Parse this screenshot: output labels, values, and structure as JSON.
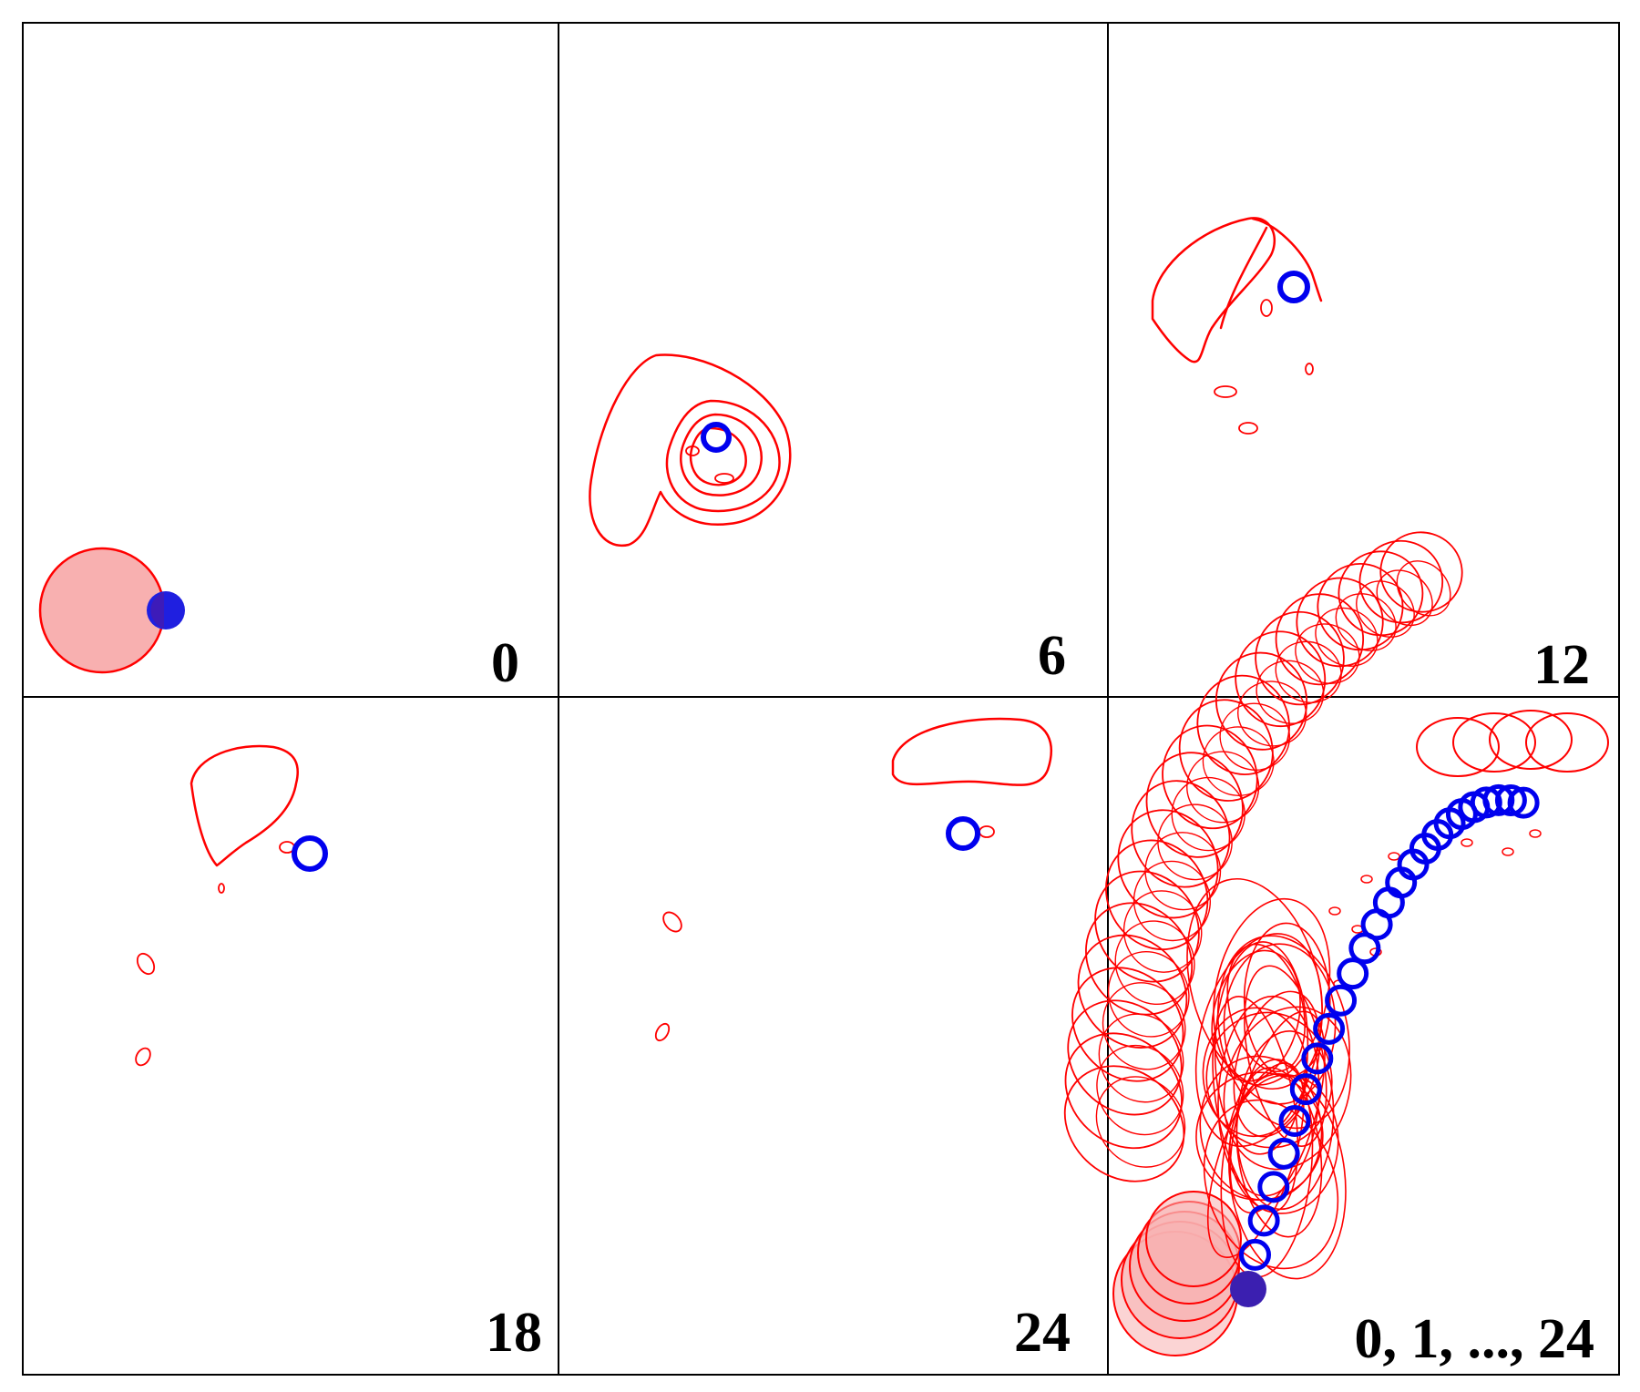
{
  "figure": {
    "panels": [
      {
        "id": "t0",
        "label": "0"
      },
      {
        "id": "t6",
        "label": "6"
      },
      {
        "id": "t12",
        "label": "12"
      },
      {
        "id": "t18",
        "label": "18"
      },
      {
        "id": "t24",
        "label": "24"
      },
      {
        "id": "overlay",
        "label": "0, 1, ..., 24"
      }
    ],
    "colors": {
      "red_outline": "#ff0000",
      "red_fill": "#f8b0b0",
      "blue_ring": "#0000ee",
      "blue_fill_overlap": "#3b1fb0",
      "frame": "#000000"
    }
  }
}
